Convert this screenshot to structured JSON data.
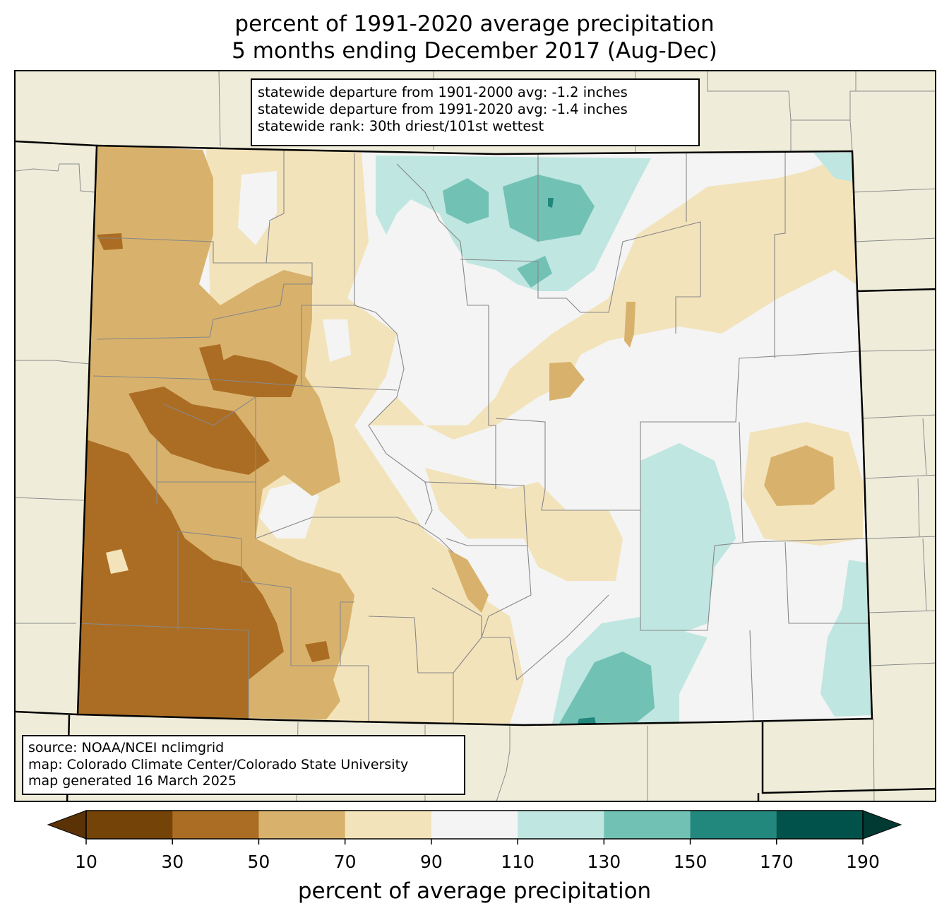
{
  "title": {
    "line1": "percent of 1991-2020 average precipitation",
    "line2": "5 months ending December 2017 (Aug-Dec)"
  },
  "stats": {
    "line1": "statewide departure from 1901-2000 avg: -1.2 inches",
    "line2": "statewide departure from 1991-2020 avg: -1.4 inches",
    "line3": "statewide rank: 30th driest/101st wettest"
  },
  "source": {
    "line1": "source: NOAA/NCEI nclimgrid",
    "line2": "map: Colorado Climate Center/Colorado State University",
    "line3": "map generated 16 March 2025"
  },
  "colorbar": {
    "label": "percent of average precipitation",
    "ticks": [
      "10",
      "30",
      "50",
      "70",
      "90",
      "110",
      "130",
      "150",
      "170",
      "190"
    ],
    "colors": [
      "#744308",
      "#ab6d23",
      "#d8b26c",
      "#f3e3bb",
      "#f3f4f3",
      "#bfe6e0",
      "#72c1b5",
      "#22877d",
      "#01524a"
    ],
    "under_color": "#5a3205",
    "over_color": "#003a33"
  },
  "map": {
    "background_color": "#efedda",
    "state_fill": "#f3f4f3"
  }
}
